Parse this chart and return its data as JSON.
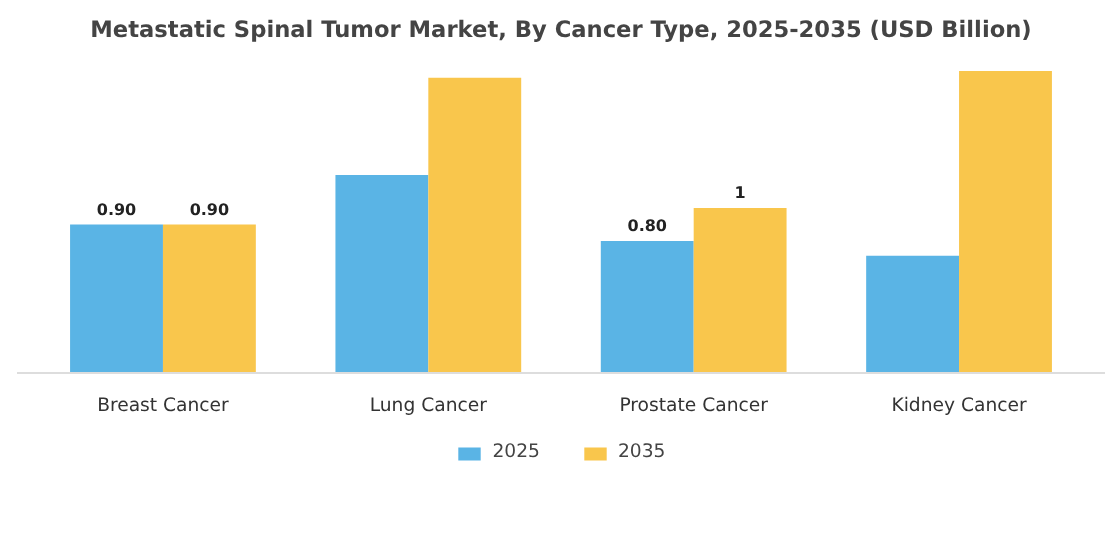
{
  "chart_data": {
    "type": "bar",
    "title": "Metastatic Spinal Tumor Market, By Cancer Type, 2025-2035 (USD Billion)",
    "categories": [
      "Breast Cancer",
      "Lung Cancer",
      "Prostate Cancer",
      "Kidney Cancer"
    ],
    "series": [
      {
        "name": "2025",
        "color": "#5ab4e5",
        "values": [
          0.9,
          1.2,
          0.8,
          0.71
        ],
        "value_labels": [
          "0.90",
          null,
          "0.80",
          null
        ]
      },
      {
        "name": "2035",
        "color": "#f9c64c",
        "values": [
          0.9,
          1.79,
          1,
          1.83
        ],
        "value_labels": [
          "0.90",
          null,
          "1",
          null
        ]
      }
    ],
    "legend": "bottom"
  }
}
